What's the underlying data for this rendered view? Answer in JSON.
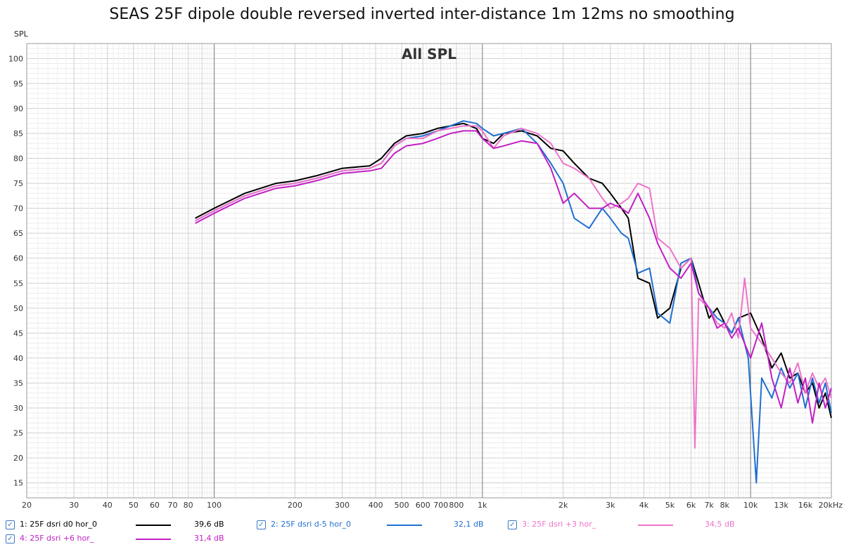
{
  "chart_data": {
    "type": "line",
    "title": "SEAS 25F dipole double reversed inverted inter-distance 1m 12ms no smoothing",
    "subtitle": "All SPL",
    "ylabel": "SPL",
    "xlabel": "",
    "x_scale": "log",
    "xlim": [
      20,
      20000
    ],
    "ylim": [
      12,
      103
    ],
    "grid": true,
    "x_tick_labels": [
      {
        "v": 20,
        "t": "20"
      },
      {
        "v": 30,
        "t": "30"
      },
      {
        "v": 40,
        "t": "40"
      },
      {
        "v": 50,
        "t": "50"
      },
      {
        "v": 60,
        "t": "60"
      },
      {
        "v": 70,
        "t": "70"
      },
      {
        "v": 80,
        "t": "80"
      },
      {
        "v": 100,
        "t": "100"
      },
      {
        "v": 200,
        "t": "200"
      },
      {
        "v": 300,
        "t": "300"
      },
      {
        "v": 400,
        "t": "400"
      },
      {
        "v": 500,
        "t": "500"
      },
      {
        "v": 600,
        "t": "600"
      },
      {
        "v": 700,
        "t": "700"
      },
      {
        "v": 800,
        "t": "800"
      },
      {
        "v": 1000,
        "t": "1k"
      },
      {
        "v": 2000,
        "t": "2k"
      },
      {
        "v": 3000,
        "t": "3k"
      },
      {
        "v": 4000,
        "t": "4k"
      },
      {
        "v": 5000,
        "t": "5k"
      },
      {
        "v": 6000,
        "t": "6k"
      },
      {
        "v": 7000,
        "t": "7k"
      },
      {
        "v": 8000,
        "t": "8k"
      },
      {
        "v": 10000,
        "t": "10k"
      },
      {
        "v": 13000,
        "t": "13k"
      },
      {
        "v": 16000,
        "t": "16k"
      },
      {
        "v": 20000,
        "t": "20kHz"
      }
    ],
    "y_ticks": [
      15,
      20,
      25,
      30,
      35,
      40,
      45,
      50,
      55,
      60,
      65,
      70,
      75,
      80,
      85,
      90,
      95,
      100
    ],
    "series": [
      {
        "name": "1: 25F dsri d0 hor_0",
        "value_label": "39,6 dB",
        "color": "#000000",
        "x": [
          85,
          100,
          130,
          170,
          200,
          240,
          300,
          380,
          420,
          470,
          520,
          600,
          680,
          760,
          850,
          950,
          1000,
          1100,
          1200,
          1400,
          1600,
          1800,
          2000,
          2200,
          2500,
          2800,
          3000,
          3300,
          3500,
          3800,
          4200,
          4500,
          5000,
          5500,
          6000,
          6400,
          7000,
          7500,
          8000,
          8500,
          9000,
          10000,
          11000,
          12000,
          13000,
          14000,
          15000,
          16000,
          17000,
          18000,
          19000,
          20000
        ],
        "y": [
          68,
          70,
          73,
          75,
          75.5,
          76.5,
          78,
          78.5,
          80,
          83,
          84.5,
          85,
          86,
          86.5,
          87,
          86,
          84,
          83,
          85,
          85.5,
          84.5,
          82,
          81.5,
          79,
          76,
          75,
          73,
          70,
          68,
          56,
          55,
          48,
          50,
          58,
          60,
          55,
          48,
          50,
          47,
          45,
          48,
          49,
          44,
          38,
          41,
          36,
          37,
          33,
          35,
          30,
          33,
          28
        ]
      },
      {
        "name": "2: 25F dsri d-5 hor_0",
        "value_label": "32,1 dB",
        "color": "#1f6fd1",
        "x": [
          85,
          100,
          130,
          170,
          200,
          240,
          300,
          380,
          420,
          470,
          520,
          600,
          680,
          760,
          850,
          950,
          1000,
          1100,
          1200,
          1400,
          1600,
          1800,
          2000,
          2200,
          2500,
          2800,
          3000,
          3300,
          3500,
          3800,
          4200,
          4500,
          5000,
          5500,
          6000,
          6400,
          7000,
          7500,
          8000,
          8500,
          9000,
          9800,
          10500,
          11000,
          12000,
          13000,
          14000,
          15000,
          16000,
          17000,
          18000,
          19000,
          20000
        ],
        "y": [
          67.5,
          69.5,
          72.5,
          74.5,
          75,
          76,
          77.5,
          78,
          79,
          82.5,
          84,
          84.5,
          85.5,
          86.5,
          87.5,
          87,
          86,
          84.5,
          85,
          86,
          83,
          79,
          75,
          68,
          66,
          70,
          68,
          65,
          64,
          57,
          58,
          49,
          47,
          59,
          60,
          53,
          50,
          48,
          47,
          45,
          48,
          40,
          15,
          36,
          32,
          38,
          34,
          37,
          30,
          36,
          31,
          35,
          29
        ]
      },
      {
        "name": "3: 25F dsri +3 hor_",
        "value_label": "34,5 dB",
        "color": "#ee74c9",
        "x": [
          85,
          100,
          130,
          170,
          200,
          240,
          300,
          380,
          420,
          470,
          520,
          600,
          680,
          760,
          850,
          950,
          1000,
          1100,
          1200,
          1400,
          1600,
          1800,
          2000,
          2200,
          2500,
          2800,
          3000,
          3300,
          3500,
          3800,
          4200,
          4500,
          5000,
          5500,
          6000,
          6200,
          6400,
          7000,
          7500,
          8000,
          8500,
          9000,
          9500,
          10000,
          11000,
          12000,
          13000,
          14000,
          15000,
          16000,
          17000,
          18000,
          19000,
          20000
        ],
        "y": [
          67.5,
          69.5,
          72.5,
          74.5,
          75,
          76,
          77.5,
          78,
          79,
          82.5,
          84,
          84,
          85.5,
          86,
          86.5,
          86.5,
          85.5,
          82,
          84.5,
          86,
          85,
          83,
          79,
          78,
          76,
          72,
          70,
          71,
          72,
          75,
          74,
          64,
          62,
          58,
          60,
          22,
          52,
          50,
          47,
          46,
          49,
          44,
          56,
          46,
          43,
          40,
          37,
          35,
          39,
          33,
          37,
          34,
          36,
          32
        ]
      },
      {
        "name": "4: 25F dsri +6 hor_",
        "value_label": "31,4 dB",
        "color": "#c21fc4",
        "x": [
          85,
          100,
          130,
          170,
          200,
          240,
          300,
          380,
          420,
          470,
          520,
          600,
          680,
          760,
          850,
          950,
          1000,
          1100,
          1200,
          1400,
          1600,
          1800,
          2000,
          2200,
          2500,
          2800,
          3000,
          3300,
          3500,
          3800,
          4200,
          4500,
          5000,
          5500,
          6000,
          6400,
          7000,
          7500,
          8000,
          8500,
          9000,
          10000,
          11000,
          12000,
          13000,
          14000,
          15000,
          16000,
          17000,
          18000,
          19000,
          20000
        ],
        "y": [
          67,
          69,
          72,
          74,
          74.5,
          75.5,
          77,
          77.5,
          78,
          81,
          82.5,
          83,
          84,
          85,
          85.5,
          85.5,
          84,
          82,
          82.5,
          83.5,
          83,
          78,
          71,
          73,
          70,
          70,
          71,
          70,
          69,
          73,
          68,
          63,
          58,
          56,
          59,
          53,
          50,
          46,
          47,
          44,
          46,
          40,
          47,
          36,
          30,
          38,
          31,
          36,
          27,
          35,
          30,
          34
        ]
      }
    ]
  },
  "legend": [
    {
      "checked": "✓",
      "label": "1: 25F dsri d0 hor_0",
      "value": "39,6 dB",
      "color": "#000000"
    },
    {
      "checked": "✓",
      "label": "2: 25F dsri d-5 hor_0",
      "value": "32,1 dB",
      "color": "#1f6fd1"
    },
    {
      "checked": "✓",
      "label": "3: 25F dsri +3 hor_",
      "value": "34,5 dB",
      "color": "#ee74c9"
    },
    {
      "checked": "✓",
      "label": "4: 25F dsri +6 hor_",
      "value": "31,4 dB",
      "color": "#c21fc4"
    }
  ]
}
